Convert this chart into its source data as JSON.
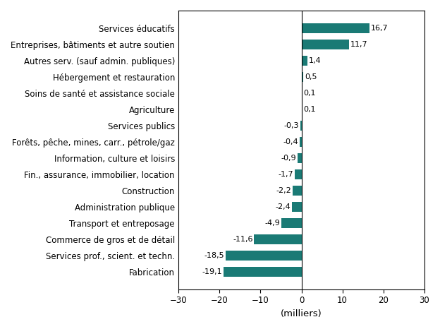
{
  "categories": [
    "Services éducatifs",
    "Entreprises, bâtiments et autre soutien",
    "Autres serv. (sauf admin. publiques)",
    "Hébergement et restauration",
    "Soins de santé et assistance sociale",
    "Agriculture",
    "Services publics",
    "Forêts, pêche, mines, carr., pétrole/gaz",
    "Information, culture et loisirs",
    "Fin., assurance, immobilier, location",
    "Construction",
    "Administration publique",
    "Transport et entreposage",
    "Commerce de gros et de détail",
    "Services prof., scient. et techn.",
    "Fabrication"
  ],
  "values": [
    16.7,
    11.7,
    1.4,
    0.5,
    0.1,
    0.1,
    -0.3,
    -0.4,
    -0.9,
    -1.7,
    -2.2,
    -2.4,
    -4.9,
    -11.6,
    -18.5,
    -19.1
  ],
  "bar_color": "#1a7a75",
  "xlabel": "(milliers)",
  "xlim": [
    -30,
    30
  ],
  "xticks": [
    -30,
    -20,
    -10,
    0,
    10,
    20,
    30
  ],
  "background_color": "#ffffff",
  "label_fontsize": 8.5,
  "value_fontsize": 8.0,
  "xlabel_fontsize": 9.5
}
